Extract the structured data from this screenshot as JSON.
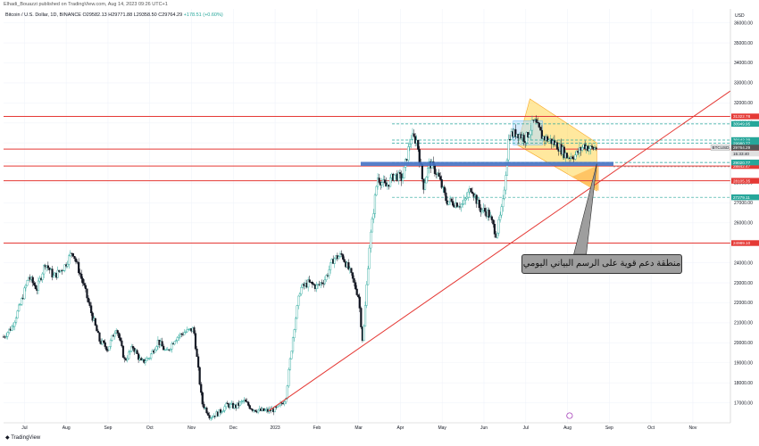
{
  "header": {
    "publisher": "Elhadi_Bouazzi published on TradingView.com, Aug 14, 2023 09:26 UTC+1",
    "symbol": "Bitcoin / U.S. Dollar, 1D, BINANCE",
    "ohlc": "O29582.13 H29771.88 L29358.50 C29764.29",
    "change": "+178.51 (+0.60%)"
  },
  "footer": {
    "logo_text": "TradingView"
  },
  "annotation": {
    "text": "منطقة دعم قوية على الرسم البياني اليومي"
  },
  "colors": {
    "up": "#26a69a",
    "down": "#131722",
    "level": "#e53935",
    "trendline": "#e53935",
    "support_zone": "#4472c4",
    "channel": "#ffd54f",
    "dashed": "#26a69a",
    "price_label": "#e53935",
    "teal_label": "#26a69a",
    "dark_label": "#555555"
  },
  "chart_data": {
    "type": "candlestick",
    "ylabel": "USD",
    "ylim": [
      16000,
      36700
    ],
    "y_ticks": [
      17000,
      18000,
      19000,
      20000,
      21000,
      22000,
      23000,
      24000,
      25000,
      26000,
      27000,
      28000,
      29000,
      30000,
      31000,
      32000,
      33000,
      34000,
      35000,
      36000
    ],
    "y_tick_labels": [
      "17000.00",
      "18000.00",
      "19000.00",
      "20000.00",
      "21000.00",
      "22000.00",
      "23000.00",
      "24000.00",
      "25000.00",
      "26000.00",
      "27000.00",
      "28000.00",
      "29000.00",
      "30000.00",
      "31000.00",
      "32000.00",
      "33000.00",
      "34000.00",
      "35000.00",
      "36000.00"
    ],
    "x_labels": [
      {
        "label": "Jul",
        "x": 0.5
      },
      {
        "label": "Aug",
        "x": 1.5
      },
      {
        "label": "Sep",
        "x": 2.5
      },
      {
        "label": "Oct",
        "x": 3.5
      },
      {
        "label": "Nov",
        "x": 4.5
      },
      {
        "label": "Dec",
        "x": 5.5
      },
      {
        "label": "2023",
        "x": 6.5
      },
      {
        "label": "Feb",
        "x": 7.5
      },
      {
        "label": "Mar",
        "x": 8.5
      },
      {
        "label": "Apr",
        "x": 9.5
      },
      {
        "label": "May",
        "x": 10.5
      },
      {
        "label": "Jun",
        "x": 11.5
      },
      {
        "label": "Jul",
        "x": 12.5
      },
      {
        "label": "Aug",
        "x": 13.5
      },
      {
        "label": "Sep",
        "x": 14.5
      },
      {
        "label": "Oct",
        "x": 15.5
      },
      {
        "label": "Nov",
        "x": 16.5
      }
    ],
    "xlim": [
      0,
      17.4
    ],
    "price_path": [
      [
        0.0,
        20300
      ],
      [
        0.2,
        20800
      ],
      [
        0.4,
        21900
      ],
      [
        0.6,
        23300
      ],
      [
        0.8,
        22700
      ],
      [
        1.0,
        24000
      ],
      [
        1.2,
        23300
      ],
      [
        1.45,
        23800
      ],
      [
        1.65,
        24600
      ],
      [
        1.9,
        23000
      ],
      [
        2.1,
        21500
      ],
      [
        2.3,
        20100
      ],
      [
        2.5,
        19700
      ],
      [
        2.7,
        20800
      ],
      [
        2.9,
        19100
      ],
      [
        3.1,
        19800
      ],
      [
        3.3,
        19000
      ],
      [
        3.5,
        19300
      ],
      [
        3.7,
        20100
      ],
      [
        3.9,
        19500
      ],
      [
        4.1,
        20200
      ],
      [
        4.3,
        20500
      ],
      [
        4.55,
        20700
      ],
      [
        4.75,
        17000
      ],
      [
        4.95,
        16300
      ],
      [
        5.15,
        16500
      ],
      [
        5.35,
        16900
      ],
      [
        5.55,
        16800
      ],
      [
        5.75,
        17100
      ],
      [
        5.95,
        16700
      ],
      [
        6.15,
        16600
      ],
      [
        6.35,
        16600
      ],
      [
        6.55,
        16700
      ],
      [
        6.75,
        17200
      ],
      [
        6.95,
        20700
      ],
      [
        7.1,
        22700
      ],
      [
        7.3,
        23000
      ],
      [
        7.5,
        22800
      ],
      [
        7.7,
        23200
      ],
      [
        7.9,
        24200
      ],
      [
        8.1,
        24400
      ],
      [
        8.3,
        23500
      ],
      [
        8.5,
        22300
      ],
      [
        8.6,
        20000
      ],
      [
        8.75,
        24700
      ],
      [
        8.95,
        28300
      ],
      [
        9.15,
        27800
      ],
      [
        9.35,
        28400
      ],
      [
        9.55,
        28200
      ],
      [
        9.75,
        30300
      ],
      [
        9.9,
        30100
      ],
      [
        10.05,
        27800
      ],
      [
        10.2,
        29000
      ],
      [
        10.4,
        28400
      ],
      [
        10.6,
        27100
      ],
      [
        10.8,
        27000
      ],
      [
        11.0,
        26900
      ],
      [
        11.2,
        27800
      ],
      [
        11.4,
        26700
      ],
      [
        11.6,
        26500
      ],
      [
        11.8,
        25400
      ],
      [
        11.95,
        26900
      ],
      [
        12.1,
        30400
      ],
      [
        12.3,
        30500
      ],
      [
        12.5,
        30200
      ],
      [
        12.7,
        31100
      ],
      [
        12.9,
        30300
      ],
      [
        13.1,
        30100
      ],
      [
        13.3,
        29800
      ],
      [
        13.5,
        29300
      ],
      [
        13.7,
        29400
      ],
      [
        13.9,
        29900
      ],
      [
        14.05,
        29700
      ],
      [
        14.2,
        29764
      ]
    ],
    "horizontal_levels": [
      {
        "price": 31322.78,
        "label": "31322.78",
        "style": "solid-red"
      },
      {
        "price": 29692.44,
        "label": "29692.44",
        "style": "solid-red"
      },
      {
        "price": 28842.47,
        "label": "28842.47",
        "style": "solid-red"
      },
      {
        "price": 28105.35,
        "label": "28105.35",
        "style": "solid-red"
      },
      {
        "price": 24989.1,
        "label": "24989.10",
        "style": "solid-red"
      },
      {
        "price": 30949.95,
        "label": "30949.95",
        "style": "dashed-teal"
      },
      {
        "price": 30142.29,
        "label": "30142.29",
        "style": "dashed-teal"
      },
      {
        "price": 29980.77,
        "label": "29980.77",
        "style": "dashed-teal"
      },
      {
        "price": 29020.77,
        "label": "29020.77",
        "style": "dashed-teal"
      },
      {
        "price": 27279.11,
        "label": "27279.11",
        "style": "dashed-teal"
      }
    ],
    "current_price": {
      "label": "BTCUSD",
      "price": 29764.29,
      "price_label": "29764.29",
      "countdown": "15:33:40"
    },
    "support_zone": {
      "x_start": 8.55,
      "x_end": 14.6,
      "y_low": 28850,
      "y_high": 29050
    },
    "trendline": {
      "x1": 6.35,
      "y1": 16600,
      "x2": 17.4,
      "y2": 32600
    },
    "channel": {
      "upper": [
        [
          12.6,
          32200
        ],
        [
          14.2,
          30000
        ]
      ],
      "lower": [
        [
          12.3,
          29900
        ],
        [
          14.2,
          27600
        ]
      ]
    },
    "blue_box": {
      "x_start": 12.2,
      "x_end": 12.9,
      "y_low": 29900,
      "y_high": 31100
    }
  }
}
